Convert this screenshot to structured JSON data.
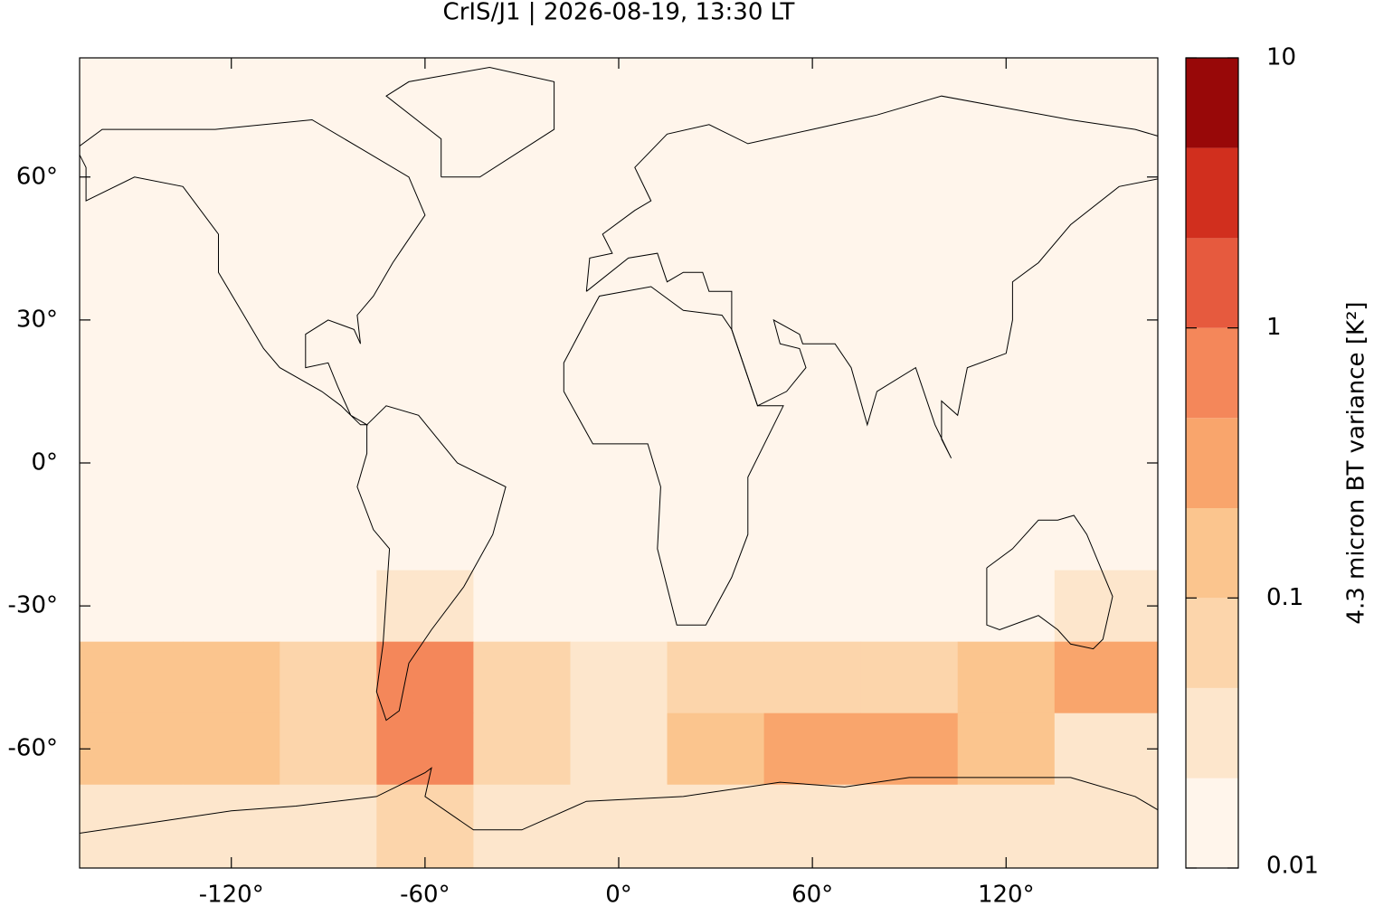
{
  "chart_data": {
    "type": "heatmap-map",
    "title": "CrIS/J1 | 2026-08-19, 13:30 LT",
    "xlim": [
      -167,
      167
    ],
    "ylim": [
      -85,
      85
    ],
    "xticks": [
      {
        "value": -120,
        "label": "-120°"
      },
      {
        "value": -60,
        "label": "-60°"
      },
      {
        "value": 0,
        "label": "0°"
      },
      {
        "value": 60,
        "label": "60°"
      },
      {
        "value": 120,
        "label": "120°"
      }
    ],
    "yticks": [
      {
        "value": -60,
        "label": "-60°"
      },
      {
        "value": -30,
        "label": "-30°"
      },
      {
        "value": 0,
        "label": "0°"
      },
      {
        "value": 30,
        "label": "30°"
      },
      {
        "value": 60,
        "label": "60°"
      }
    ],
    "field": {
      "lon": [
        -150,
        -120,
        -90,
        -60,
        -30,
        0,
        30,
        60,
        90,
        120,
        150
      ],
      "lat": [
        75,
        60,
        45,
        30,
        15,
        0,
        -15,
        -30,
        -45,
        -60,
        -75
      ],
      "values": [
        [
          0.01,
          0.01,
          0.01,
          0.01,
          0.01,
          0.01,
          0.01,
          0.01,
          0.01,
          0.01,
          0.01
        ],
        [
          0.01,
          0.01,
          0.01,
          0.01,
          0.01,
          0.01,
          0.01,
          0.01,
          0.01,
          0.01,
          0.01
        ],
        [
          0.012,
          0.012,
          0.012,
          0.012,
          0.012,
          0.012,
          0.012,
          0.012,
          0.012,
          0.012,
          0.012
        ],
        [
          0.012,
          0.012,
          0.012,
          0.012,
          0.012,
          0.012,
          0.012,
          0.012,
          0.012,
          0.012,
          0.012
        ],
        [
          0.012,
          0.012,
          0.012,
          0.012,
          0.012,
          0.012,
          0.012,
          0.012,
          0.012,
          0.012,
          0.012
        ],
        [
          0.012,
          0.012,
          0.012,
          0.012,
          0.012,
          0.012,
          0.012,
          0.012,
          0.012,
          0.012,
          0.012
        ],
        [
          0.012,
          0.012,
          0.012,
          0.012,
          0.012,
          0.012,
          0.012,
          0.012,
          0.012,
          0.012,
          0.012
        ],
        [
          0.02,
          0.015,
          0.015,
          0.03,
          0.02,
          0.015,
          0.015,
          0.015,
          0.015,
          0.02,
          0.03
        ],
        [
          0.15,
          0.2,
          0.05,
          0.8,
          0.08,
          0.04,
          0.05,
          0.06,
          0.05,
          0.1,
          0.3
        ],
        [
          0.2,
          0.1,
          0.06,
          0.6,
          0.05,
          0.04,
          0.1,
          0.3,
          0.25,
          0.2,
          0.04
        ],
        [
          0.04,
          0.03,
          0.03,
          0.05,
          0.03,
          0.03,
          0.03,
          0.04,
          0.04,
          0.03,
          0.03
        ]
      ]
    },
    "colorbar": {
      "label": "4.3 micron BT variance [K²]",
      "log": true,
      "lim": [
        0.01,
        10
      ],
      "ticks": [
        0.01,
        0.1,
        1,
        10
      ],
      "levels": [
        0.01,
        0.0215,
        0.0464,
        0.1,
        0.215,
        0.464,
        1,
        2.15,
        4.64,
        10
      ],
      "colors": [
        "#fff5eb",
        "#fde6cc",
        "#fcd5ab",
        "#fbc58e",
        "#f9a56c",
        "#f4875a",
        "#e65a3e",
        "#d12f1e",
        "#980808"
      ]
    }
  }
}
